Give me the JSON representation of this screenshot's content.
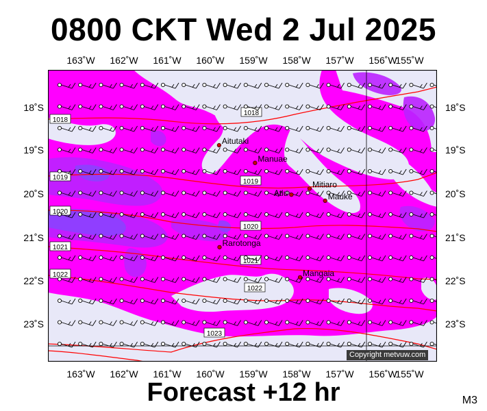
{
  "title": "0800 CKT Wed 2 Jul 2025",
  "footer": "Forecast +12 hr",
  "model_label": "M3",
  "copyright": "Copyright metvuw.com",
  "colors": {
    "base": "#e8e8f8",
    "rain_light": "#ff00ff",
    "rain_medium": "#bb22ff",
    "rain_heavy": "#8844ff",
    "isobar": "#ff0000",
    "town_marker": "#cc0000"
  },
  "lon_labels": [
    "163˚W",
    "162˚W",
    "161˚W",
    "160˚W",
    "159˚W",
    "158˚W",
    "157˚W",
    "156˚W",
    "155˚W"
  ],
  "lat_labels": [
    "18˚S",
    "19˚S",
    "20˚S",
    "21˚S",
    "22˚S",
    "23˚S"
  ],
  "places": [
    {
      "name": "Aitutaki",
      "lon": -159.79,
      "lat": -18.86
    },
    {
      "name": "Manuae",
      "lon": -158.96,
      "lat": -19.27
    },
    {
      "name": "Atiu",
      "lon": -158.12,
      "lat": -20.01
    },
    {
      "name": "Mitiaro",
      "lon": -157.7,
      "lat": -19.87
    },
    {
      "name": "Mauke",
      "lon": -157.34,
      "lat": -20.15
    },
    {
      "name": "Rarotonga",
      "lon": -159.78,
      "lat": -21.23
    },
    {
      "name": "Mangaia",
      "lon": -157.92,
      "lat": -21.93
    }
  ],
  "isobar_labels": [
    "1018",
    "1018",
    "1019",
    "1019",
    "1020",
    "1020",
    "1021",
    "1021",
    "1022",
    "1022",
    "1023"
  ],
  "wind": {
    "direction_from": "E",
    "barbs": "full barb plus half barb"
  }
}
